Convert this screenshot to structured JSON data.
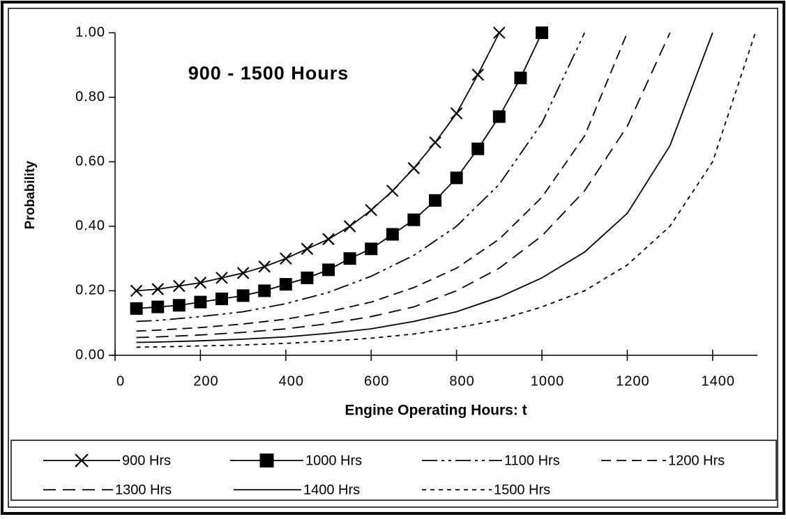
{
  "chart_data": {
    "type": "line",
    "title": "900 - 1500 Hours",
    "x_label": "Engine Operating Hours: t",
    "y_label": "Probability",
    "xlim": [
      0,
      1500
    ],
    "xticks": [
      0,
      200,
      400,
      600,
      800,
      1000,
      1200,
      1400
    ],
    "ylim": [
      0,
      1
    ],
    "yticks": [
      {
        "value": 0,
        "label": "0.00"
      },
      {
        "value": 0.2,
        "label": "0.20"
      },
      {
        "value": 0.4,
        "label": "0.40"
      },
      {
        "value": 0.6,
        "label": "0.60"
      },
      {
        "value": 0.8,
        "label": "0.80"
      },
      {
        "value": 1,
        "label": "1.00"
      }
    ],
    "series": [
      {
        "name": "900 Hrs",
        "color": "#000000",
        "marker": "x",
        "x": [
          50,
          100,
          150,
          200,
          250,
          300,
          350,
          400,
          450,
          500,
          550,
          600,
          650,
          700,
          750,
          800,
          850,
          900
        ],
        "values": [
          0.2,
          0.205,
          0.215,
          0.225,
          0.24,
          0.255,
          0.275,
          0.3,
          0.33,
          0.36,
          0.4,
          0.45,
          0.51,
          0.58,
          0.66,
          0.75,
          0.87,
          1.0
        ]
      },
      {
        "name": "1000 Hrs",
        "color": "#000000",
        "marker": "square",
        "x": [
          50,
          100,
          150,
          200,
          250,
          300,
          350,
          400,
          450,
          500,
          550,
          600,
          650,
          700,
          750,
          800,
          850,
          900,
          950,
          1000
        ],
        "values": [
          0.145,
          0.15,
          0.155,
          0.165,
          0.175,
          0.185,
          0.2,
          0.22,
          0.24,
          0.265,
          0.3,
          0.33,
          0.375,
          0.42,
          0.48,
          0.55,
          0.64,
          0.74,
          0.86,
          1.0
        ]
      },
      {
        "name": "1100 Hrs",
        "color": "#000000",
        "x": [
          50,
          100,
          200,
          300,
          400,
          500,
          600,
          700,
          800,
          900,
          1000,
          1100
        ],
        "values": [
          0.105,
          0.108,
          0.12,
          0.135,
          0.16,
          0.195,
          0.245,
          0.31,
          0.4,
          0.53,
          0.72,
          1.0
        ]
      },
      {
        "name": "1200 Hrs",
        "color": "#000000",
        "x": [
          50,
          100,
          200,
          300,
          400,
          500,
          600,
          700,
          800,
          900,
          1000,
          1100,
          1200
        ],
        "values": [
          0.075,
          0.078,
          0.086,
          0.097,
          0.112,
          0.135,
          0.165,
          0.21,
          0.27,
          0.36,
          0.49,
          0.68,
          1.0
        ]
      },
      {
        "name": "1300 Hrs",
        "color": "#000000",
        "x": [
          50,
          100,
          200,
          300,
          400,
          500,
          600,
          700,
          800,
          900,
          1000,
          1100,
          1200,
          1300
        ],
        "values": [
          0.055,
          0.057,
          0.063,
          0.071,
          0.082,
          0.098,
          0.12,
          0.15,
          0.2,
          0.27,
          0.37,
          0.51,
          0.71,
          1.0
        ]
      },
      {
        "name": "1400 Hrs",
        "color": "#000000",
        "x": [
          50,
          100,
          200,
          300,
          400,
          500,
          600,
          700,
          800,
          900,
          1000,
          1100,
          1200,
          1300,
          1400
        ],
        "values": [
          0.04,
          0.041,
          0.045,
          0.05,
          0.057,
          0.068,
          0.082,
          0.105,
          0.135,
          0.18,
          0.24,
          0.32,
          0.44,
          0.65,
          1.0
        ]
      },
      {
        "name": "1500 Hrs",
        "color": "#000000",
        "x": [
          50,
          100,
          200,
          300,
          400,
          500,
          600,
          700,
          800,
          900,
          1000,
          1100,
          1200,
          1300,
          1400,
          1500
        ],
        "values": [
          0.025,
          0.026,
          0.029,
          0.032,
          0.037,
          0.044,
          0.053,
          0.066,
          0.085,
          0.11,
          0.15,
          0.2,
          0.28,
          0.4,
          0.6,
          1.0
        ]
      }
    ]
  }
}
